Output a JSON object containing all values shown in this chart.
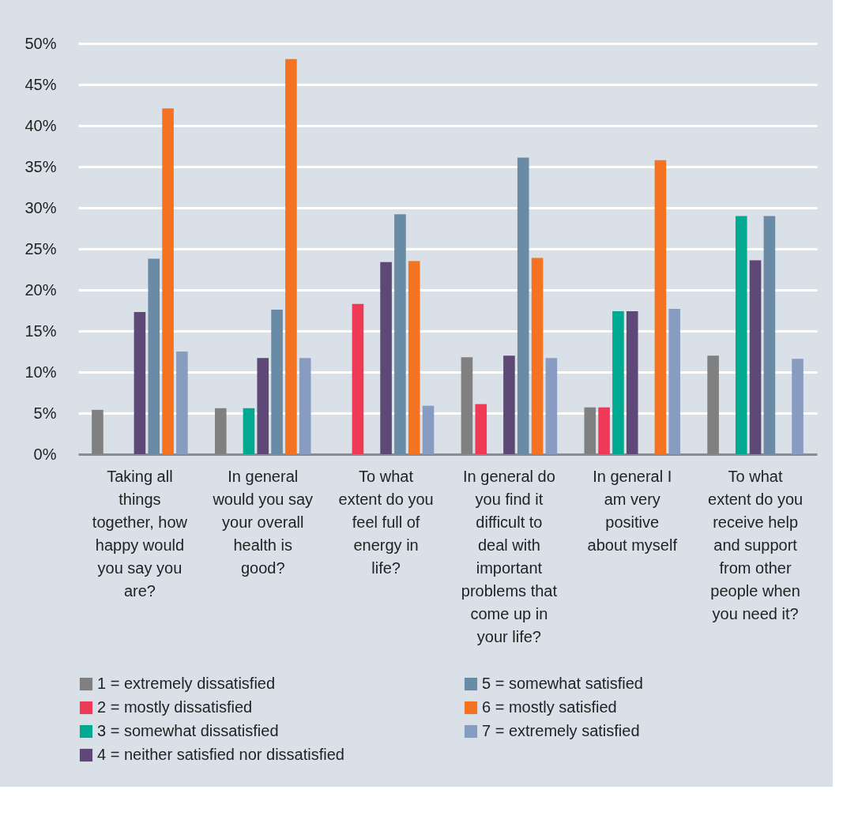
{
  "chart_data": {
    "type": "bar",
    "categories": [
      "Taking all things together, how happy would you say you are?",
      "In general would you say your overall health is good?",
      "To what extent do you feel full of energy in life?",
      "In general do you find it difficult to deal with important problems that come up in your life?",
      "In general I am very positive about myself",
      "To what extent do you receive help and support from other people when you need it?"
    ],
    "series": [
      {
        "name": "1 = extremely dissatisfied",
        "color": "#808080",
        "values": [
          5.4,
          5.6,
          null,
          11.8,
          5.7,
          12.0
        ]
      },
      {
        "name": "2 = mostly dissatisfied",
        "color": "#ee3a56",
        "values": [
          null,
          null,
          18.3,
          6.1,
          5.7,
          null
        ]
      },
      {
        "name": "3 = somewhat dissatisfied",
        "color": "#00a98f",
        "values": [
          null,
          5.6,
          null,
          null,
          17.4,
          29.0
        ]
      },
      {
        "name": "4 = neither satisfied nor dissatisfied",
        "color": "#5e4878",
        "values": [
          17.3,
          11.7,
          23.4,
          12.0,
          17.4,
          23.6
        ]
      },
      {
        "name": "5 = somewhat satisfied",
        "color": "#698ba5",
        "values": [
          23.8,
          17.6,
          29.2,
          36.1,
          null,
          29.0
        ]
      },
      {
        "name": "6 = mostly satisfied",
        "color": "#f37321",
        "values": [
          42.1,
          48.1,
          23.5,
          23.9,
          35.8,
          null
        ]
      },
      {
        "name": "7 = extremely satisfied",
        "color": "#889bc0",
        "values": [
          12.5,
          11.7,
          5.9,
          11.7,
          17.7,
          11.6
        ]
      }
    ],
    "ylim": [
      0,
      50
    ],
    "yticks": [
      {
        "value": 0,
        "label": "0%"
      },
      {
        "value": 5,
        "label": "5%"
      },
      {
        "value": 10,
        "label": "10%"
      },
      {
        "value": 15,
        "label": "15%"
      },
      {
        "value": 20,
        "label": "20%"
      },
      {
        "value": 25,
        "label": "25%"
      },
      {
        "value": 30,
        "label": "30%"
      },
      {
        "value": 35,
        "label": "35%"
      },
      {
        "value": 40,
        "label": "40%"
      },
      {
        "value": 45,
        "label": "45%"
      },
      {
        "value": 50,
        "label": "50%"
      }
    ],
    "grid": "y",
    "legend": "bottom"
  }
}
